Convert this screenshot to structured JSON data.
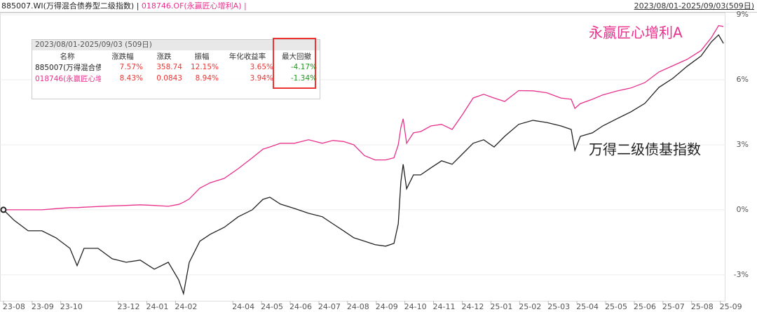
{
  "header": {
    "separator": "|",
    "range": "2023/08/01-2025/09/03(509日)"
  },
  "summary_table": {
    "period": "2023/08/01-2025/09/03 (509日)",
    "headers": [
      "名称",
      "涨跌幅",
      "涨跌",
      "振幅",
      "年化收益率",
      "最大回撤"
    ],
    "rows": [
      [
        "885007(万得混合债",
        "7.57%",
        "358.74",
        "12.15%",
        "3.65%",
        "-4.17%"
      ],
      [
        "018746(永赢匠心增",
        "8.43%",
        "0.0843",
        "8.94%",
        "3.94%",
        "-1.34%"
      ]
    ]
  },
  "chart_data": {
    "type": "line",
    "annotations": [
      "永赢匠心增利A",
      "万得二级债基指数"
    ],
    "x": [
      0,
      0.37,
      0.86,
      1.34,
      1.83,
      2.32,
      2.57,
      2.81,
      3.3,
      3.79,
      4.28,
      4.77,
      5.26,
      5.75,
      6.11,
      6.28,
      6.48,
      6.85,
      7.21,
      7.7,
      8.19,
      8.68,
      9.05,
      9.29,
      9.66,
      10.15,
      10.64,
      11.12,
      11.49,
      11.86,
      12.22,
      12.59,
      12.96,
      13.33,
      13.62,
      13.77,
      13.86,
      13.94,
      14.06,
      14.3,
      14.55,
      14.91,
      15.28,
      15.65,
      16.01,
      16.38,
      16.75,
      17.11,
      17.48,
      17.97,
      18.46,
      18.95,
      19.44,
      19.8,
      19.93,
      20.12,
      20.54,
      20.9,
      21.39,
      21.88,
      22.37,
      22.86,
      23.35,
      23.84,
      24.33,
      24.69,
      24.94,
      25.11
    ],
    "series": [
      {
        "name": "885007.WI(万得混合债券型二级指数)",
        "color": "#222222",
        "values": [
          0,
          -0.48,
          -0.97,
          -0.97,
          -1.29,
          -1.78,
          -2.58,
          -1.78,
          -1.78,
          -2.26,
          -2.42,
          -2.32,
          -2.74,
          -2.42,
          -3.23,
          -3.87,
          -2.42,
          -1.45,
          -1.13,
          -0.81,
          -0.32,
          0,
          0.48,
          0.58,
          0.26,
          0.06,
          -0.16,
          -0.32,
          -0.65,
          -0.97,
          -1.29,
          -1.45,
          -1.61,
          -1.68,
          -1.55,
          -0.65,
          1.29,
          2.1,
          0.97,
          1.61,
          1.61,
          1.94,
          2.26,
          2.1,
          2.58,
          3.07,
          3.23,
          2.9,
          3.39,
          3.94,
          4.13,
          4.03,
          3.87,
          3.71,
          2.74,
          3.39,
          3.55,
          3.87,
          4.2,
          4.52,
          4.91,
          5.65,
          6.07,
          6.62,
          7.1,
          7.75,
          8.07,
          7.68
        ]
      },
      {
        "name": "018746.OF(永赢匠心增利A)",
        "color": "#e8308c",
        "values": [
          0,
          0,
          0,
          0,
          0.05,
          0.1,
          0.1,
          0.12,
          0.15,
          0.18,
          0.2,
          0.23,
          0.2,
          0.16,
          0.25,
          0.35,
          0.5,
          1.0,
          1.25,
          1.45,
          1.9,
          2.4,
          2.8,
          2.9,
          3.07,
          3.07,
          3.23,
          3.07,
          3.2,
          3.15,
          3.0,
          2.5,
          2.3,
          2.3,
          2.4,
          3.0,
          3.8,
          4.2,
          3.07,
          3.55,
          3.61,
          3.87,
          3.94,
          3.71,
          4.4,
          5.16,
          5.33,
          5.16,
          5.0,
          5.5,
          5.49,
          5.4,
          5.16,
          5.1,
          4.68,
          4.9,
          5.1,
          5.3,
          5.48,
          5.62,
          5.87,
          6.36,
          6.65,
          6.94,
          7.35,
          7.95,
          8.5,
          8.46
        ]
      }
    ],
    "xlim": [
      -0.12,
      25.18
    ],
    "xticks": [
      {
        "value": 0,
        "label": "23-08"
      },
      {
        "value": 1,
        "label": "23-09"
      },
      {
        "value": 2,
        "label": "23-10"
      },
      {
        "value": 4,
        "label": "23-12"
      },
      {
        "value": 5,
        "label": "24-01"
      },
      {
        "value": 6,
        "label": "24-02"
      },
      {
        "value": 8,
        "label": "24-04"
      },
      {
        "value": 9,
        "label": "24-05"
      },
      {
        "value": 10,
        "label": "24-06"
      },
      {
        "value": 11,
        "label": "24-07"
      },
      {
        "value": 12,
        "label": "24-08"
      },
      {
        "value": 13,
        "label": "24-09"
      },
      {
        "value": 14,
        "label": "24-10"
      },
      {
        "value": 15,
        "label": "24-11"
      },
      {
        "value": 16,
        "label": "24-12"
      },
      {
        "value": 17,
        "label": "25-01"
      },
      {
        "value": 18,
        "label": "25-02"
      },
      {
        "value": 19,
        "label": "25-03"
      },
      {
        "value": 20,
        "label": "25-04"
      },
      {
        "value": 21,
        "label": "25-05"
      },
      {
        "value": 22,
        "label": "25-06"
      },
      {
        "value": 23,
        "label": "25-07"
      },
      {
        "value": 24,
        "label": "25-08"
      },
      {
        "value": 25,
        "label": "25-09"
      }
    ],
    "ylim": [
      -4.2,
      9.1
    ],
    "yticks": [
      {
        "value": -3,
        "label": "-3%"
      },
      {
        "value": 0,
        "label": "0%"
      },
      {
        "value": 3,
        "label": "3%"
      },
      {
        "value": 6,
        "label": "6%"
      },
      {
        "value": 9,
        "label": "9%"
      }
    ],
    "grid": true
  }
}
